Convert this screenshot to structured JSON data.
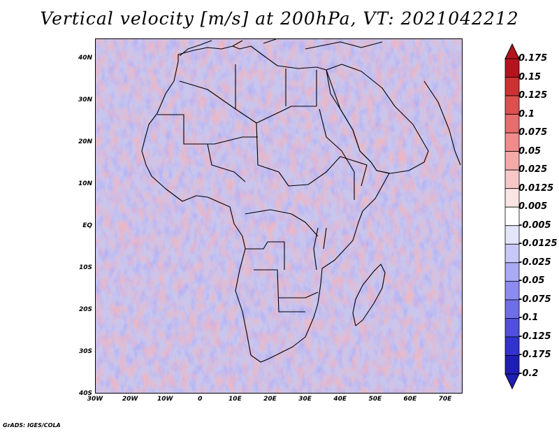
{
  "title": "Vertical velocity [m/s] at 200hPa, VT: 2021042212",
  "footer": "GrADS: IGES/COLA",
  "map": {
    "lat_range": [
      -40,
      45
    ],
    "lon_range": [
      -30,
      75
    ],
    "lat_ticks": [
      "40N",
      "30N",
      "20N",
      "10N",
      "EQ",
      "10S",
      "20S",
      "30S",
      "40S"
    ],
    "lon_ticks": [
      "30W",
      "20W",
      "10W",
      "0",
      "10E",
      "20E",
      "30E",
      "40E",
      "50E",
      "60E",
      "70E"
    ]
  },
  "colorbar": {
    "labels": [
      "0.175",
      "0.15",
      "0.125",
      "0.1",
      "0.075",
      "0.05",
      "0.025",
      "0.0125",
      "0.005",
      "-0.005",
      "-0.0125",
      "-0.025",
      "-0.05",
      "-0.075",
      "-0.1",
      "-0.125",
      "-0.175",
      "-0.2"
    ],
    "colors": [
      "#b4141e",
      "#cd3232",
      "#dc5050",
      "#e66e6e",
      "#f08c8c",
      "#f5aaaa",
      "#f8c8c8",
      "#fbe4e4",
      "#ffffff",
      "#e4e4fb",
      "#c8c8f8",
      "#aaaaf5",
      "#8c8cf0",
      "#6e6ee6",
      "#5050dc",
      "#3232cd",
      "#1e1eb4"
    ]
  }
}
